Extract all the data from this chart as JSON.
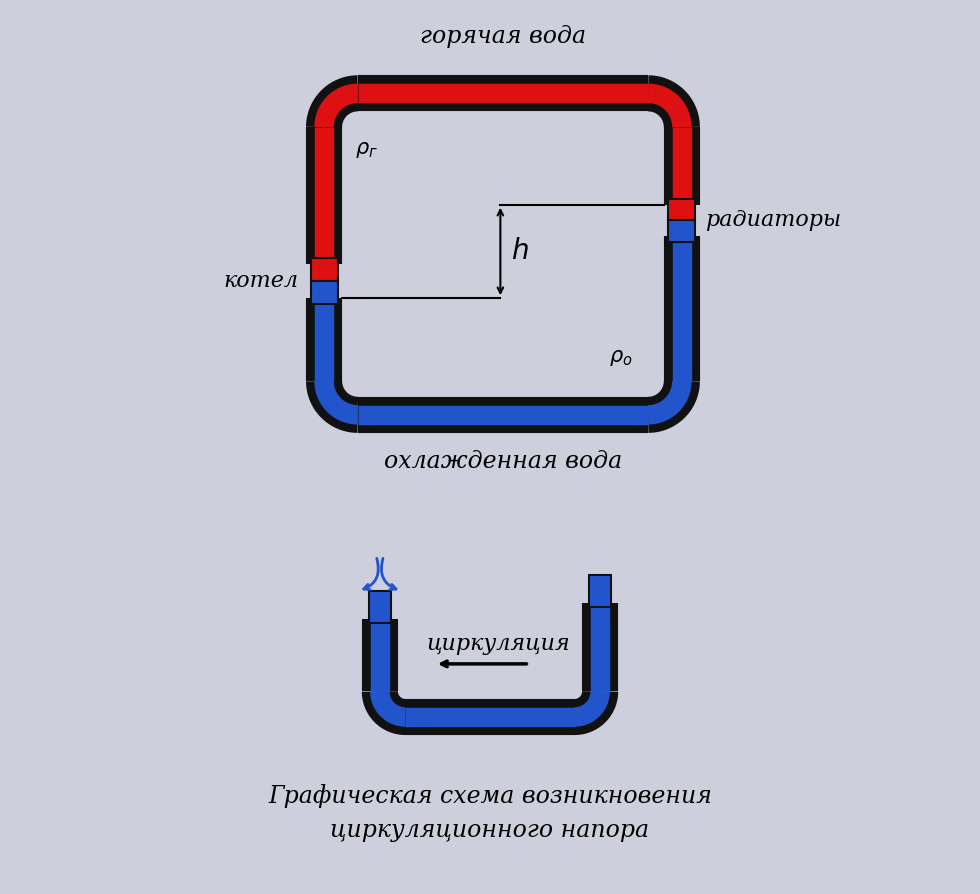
{
  "bg_color": "#cdd0dc",
  "red_color": "#dd1111",
  "blue_color": "#2255cc",
  "black": "#111111",
  "title1": "горячая вода",
  "title2": "охлажденная вода",
  "label_kotel": "котел",
  "label_radiatory": "радиаторы",
  "label_rho_g": "ρг",
  "label_rho_o": "ρо",
  "label_h": "h",
  "label_tsirk": "циркуляция",
  "title_bottom": "Графическая схема возникновения\nциркуляционного напора"
}
